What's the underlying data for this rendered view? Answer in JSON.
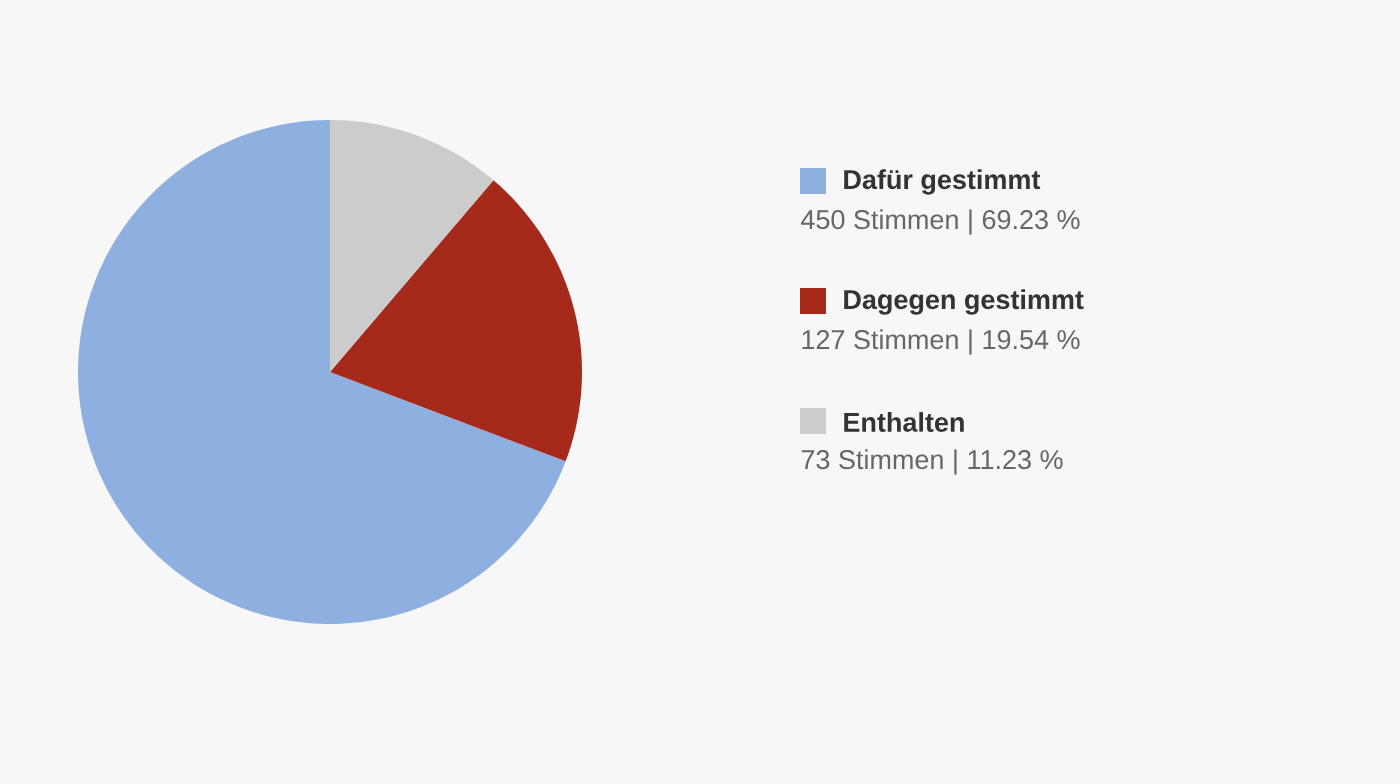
{
  "chart_data": {
    "type": "pie",
    "categories": [
      "Dafür gestimmt",
      "Dagegen gestimmt",
      "Enthalten"
    ],
    "values": [
      450,
      127,
      73
    ],
    "colors": [
      "#8eb0e0",
      "#a52a1a",
      "#cccccc"
    ],
    "value_labels": [
      "450 Stimmen | 69.23 %",
      "127 Stimmen | 19.54 %",
      "73 Stimmen | 11.23 %"
    ],
    "legend": "right"
  }
}
